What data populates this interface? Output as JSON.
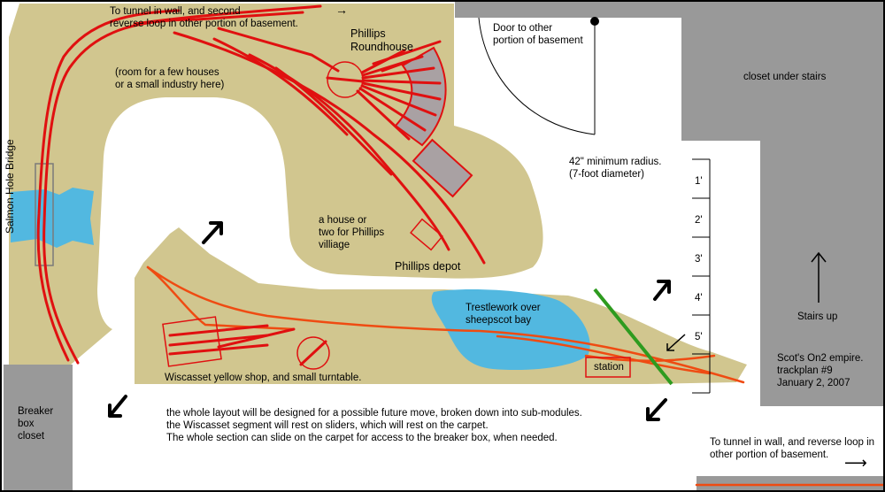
{
  "colors": {
    "land": "#d1c68f",
    "water": "#52b8e0",
    "track": "#e01010",
    "track_orange": "#ef4b12",
    "gray_area": "#999999",
    "roundhouse_fill": "#a9a1a3",
    "bridge_stroke": "#7a7a7a",
    "green_line": "#2e9b1f"
  },
  "labels": {
    "tunnel_top": "To tunnel in wall, and second\nreverse loop in other portion of basement.",
    "door": "Door to other\nportion of basement",
    "roundhouse": "Phillips\nRoundhouse",
    "room_for_houses": "(room for a few houses\nor a small industry here)",
    "closet_under_stairs": "closet under stairs",
    "min_radius": "42\" minimum radius.\n(7-foot diameter)",
    "salmon_hole_bridge": "Salmon Hole Bridge",
    "house_note": "a house or\ntwo for Phillips\nvilliage",
    "phillips_depot": "Phillips depot",
    "trestlework": "Trestlework over\nsheepscot bay",
    "stairs_up": "Stairs up",
    "empire_note": "Scot's On2 empire.\ntrackplan #9\nJanuary 2, 2007",
    "wiscasset_shop": "Wiscasset yellow shop, and small turntable.",
    "station": "station",
    "breaker_box": "Breaker\nbox\ncloset",
    "layout_note": "the whole layout will be designed for a possible future move, broken down into sub-modules.\nthe Wiscasset segment will rest on sliders, which will rest on the carpet.\nThe whole section can slide on the carpet for access to the breaker box, when needed.",
    "tunnel_bottom": "To tunnel in wall, and reverse loop in\nother portion of basement."
  },
  "ruler": [
    "1'",
    "2'",
    "3'",
    "4'",
    "5'"
  ],
  "arrows": {
    "top_right": "→",
    "bottom_right": "⟶"
  }
}
